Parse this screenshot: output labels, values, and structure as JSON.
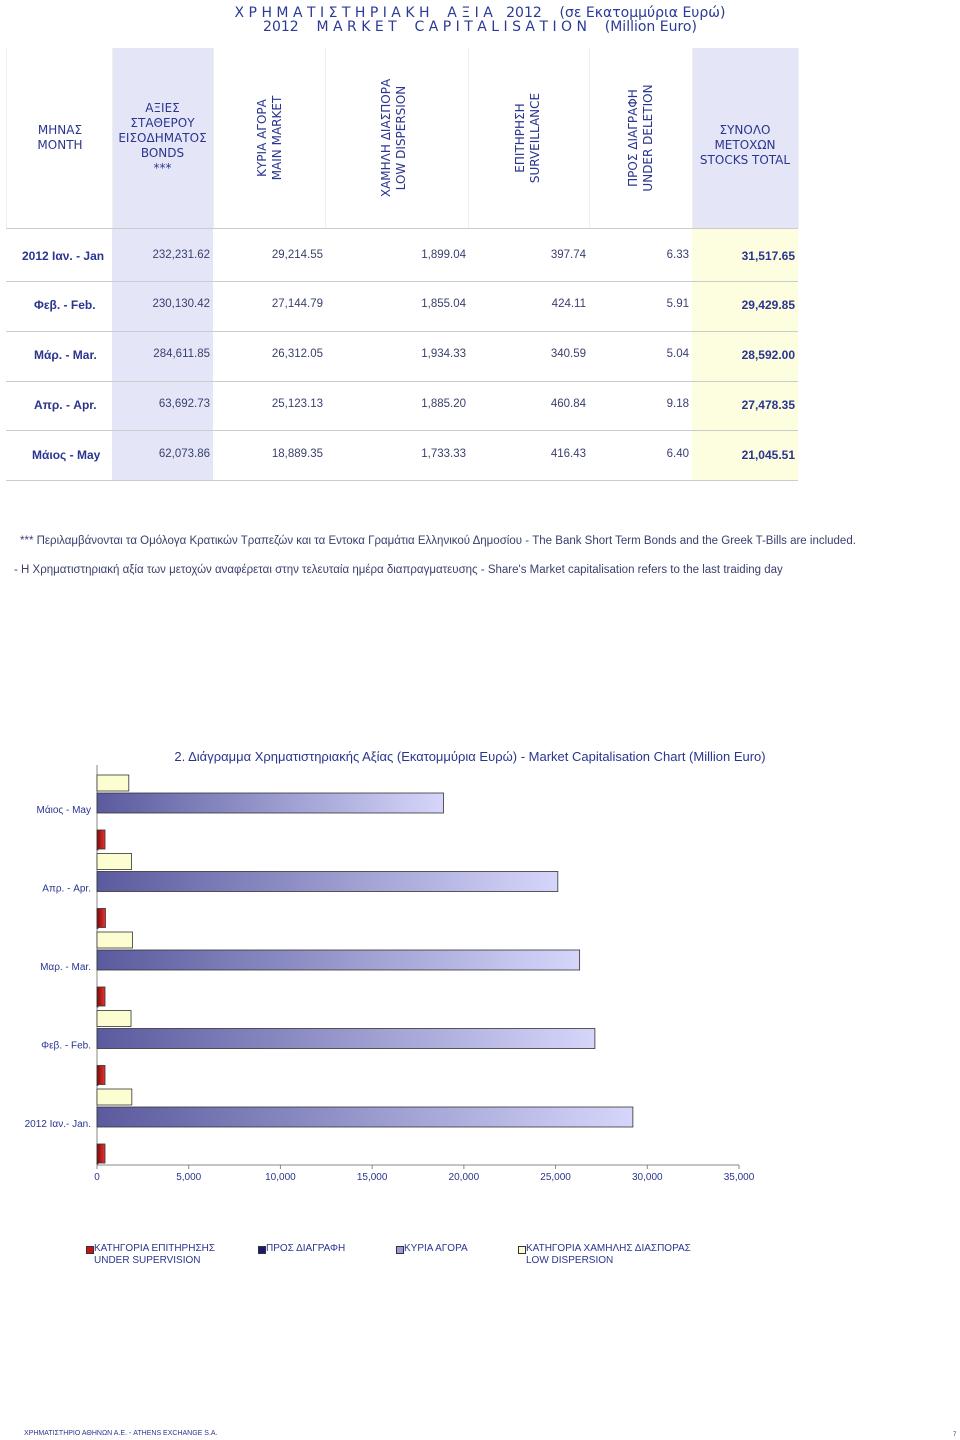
{
  "title": {
    "line1": "Χ Ρ Η Μ Α Τ Ι Σ Τ Η Ρ Ι Α Κ Η    Α Ξ Ι Α   2012    (σε Εκατομμύρια Ευρώ)",
    "line2": "2012    M A R K E T    C A P I T A L I S A T I O N    (Million Euro)"
  },
  "table": {
    "headers": {
      "month": [
        "ΜΗΝΑΣ",
        "MONTH"
      ],
      "bonds": [
        "ΑΞΙΕΣ",
        "ΣΤΑΘΕΡΟΥ",
        "ΕΙΣΟΔΗΜΑΤΟΣ",
        "BONDS",
        "***"
      ],
      "main_market": [
        "ΚΥΡΙΑ ΑΓΟΡΑ",
        "MAIN MARKET"
      ],
      "low_dispersion": [
        "ΧΑΜΗΛΗ ΔΙΑΣΠΟΡΑ",
        "LOW DISPERSION"
      ],
      "surveillance": [
        "ΕΠΙΤΗΡΗΣΗ",
        "SURVEILLANCE"
      ],
      "under_deletion": [
        "ΠΡΟΣ ΔΙΑΓΡΑΦΗ",
        "UNDER DELETION"
      ],
      "total": [
        "ΣΥΝΟΛΟ ΜΕΤΟΧΩΝ",
        "STOCKS TOTAL"
      ]
    },
    "rows": [
      {
        "month": "2012   Ιαν. - Jan",
        "bonds": "232,231.62",
        "main": "29,214.55",
        "low": "1,899.04",
        "surv": "397.74",
        "del": "6.33",
        "total": "31,517.65"
      },
      {
        "month": "Φεβ. - Feb.",
        "bonds": "230,130.42",
        "main": "27,144.79",
        "low": "1,855.04",
        "surv": "424.11",
        "del": "5.91",
        "total": "29,429.85"
      },
      {
        "month": "Μάρ. - Mar.",
        "bonds": "284,611.85",
        "main": "26,312.05",
        "low": "1,934.33",
        "surv": "340.59",
        "del": "5.04",
        "total": "28,592.00"
      },
      {
        "month": "Απρ. - Apr.",
        "bonds": "63,692.73",
        "main": "25,123.13",
        "low": "1,885.20",
        "surv": "460.84",
        "del": "9.18",
        "total": "27,478.35"
      },
      {
        "month": "Μάιος - May",
        "bonds": "62,073.86",
        "main": "18,889.35",
        "low": "1,733.33",
        "surv": "416.43",
        "del": "6.40",
        "total": "21,045.51"
      }
    ]
  },
  "notes": {
    "note1": "*** Περιλαμβάνονται τα Ομόλογα Κρατικών Τραπεζών και τα Εντοκα Γραμάτια Ελληνικού Δημοσίου - The Bank Short Term Bonds and the Greek T-Bills are included.",
    "note2": "- Η Χρηματιστηριακή αξία των μετοχών αναφέρεται στην τελευταία ημέρα διαπραγματευσης - Share's Market capitalisation refers to the last traiding day"
  },
  "chart_data": {
    "type": "bar",
    "orientation": "horizontal",
    "title": "2. Διάγραμμα Χρηματιστηριακής Αξίας (Εκατομμύρια Ευρώ) - Market Capitalisation Chart (Million Euro)",
    "categories": [
      "Μάιος - May",
      "Απρ. - Apr.",
      "Μαρ. - Mar.",
      "Φεβ. - Feb.",
      "2012  Ιαν.- Jan."
    ],
    "series": [
      {
        "name": "ΚΑΤΗΓΟΡΙΑ ΧΑΜΗΛΗΣ ΔΙΑΣΠΟΡΑΣ LOW DISPERSION",
        "key": "low",
        "color": "#fdfdd2",
        "values": [
          1733.33,
          1885.2,
          1934.33,
          1855.04,
          1899.04
        ]
      },
      {
        "name": "ΚΥΡΙΑ ΑΓΟΡΑ",
        "key": "main",
        "color": "#b8b8ea",
        "values": [
          18889.35,
          25123.13,
          26312.05,
          27144.79,
          29214.55
        ]
      },
      {
        "name": "ΠΡΟΣ ΔΙΑΓΡΑΦΗ",
        "key": "del",
        "color": "#1a1a6e",
        "values": [
          6.4,
          9.18,
          5.04,
          5.91,
          6.33
        ]
      },
      {
        "name": "ΚΑΤΗΓΟΡΙΑ ΕΠΙΤΗΡΗΣΗΣ UNDER SUPERVISION",
        "key": "surv",
        "color": "#cc1111",
        "values": [
          416.43,
          460.84,
          340.59,
          424.11,
          397.74
        ]
      }
    ],
    "xlim": [
      0,
      35000
    ],
    "xticks": [
      "0",
      "5,000",
      "10,000",
      "15,000",
      "20,000",
      "25,000",
      "30,000",
      "35,000"
    ],
    "xtick_values": [
      0,
      5000,
      10000,
      15000,
      20000,
      25000,
      30000,
      35000
    ],
    "legend": [
      {
        "label1": "ΚΑΤΗΓΟΡΙΑ ΕΠΙΤΗΡΗΣΗΣ",
        "label2": "UNDER SUPERVISION",
        "color": "#cc1111"
      },
      {
        "label1": "ΠΡΟΣ ΔΙΑΓΡΑΦΗ",
        "label2": "",
        "color": "#1a1a6e"
      },
      {
        "label1": "ΚΥΡΙΑ ΑΓΟΡΑ",
        "label2": "",
        "color": "#9a9ad8"
      },
      {
        "label1": "ΚΑΤΗΓΟΡΙΑ ΧΑΜΗΛΗΣ ΔΙΑΣΠΟΡΑΣ",
        "label2": "LOW DISPERSION",
        "color": "#fdfdd2"
      }
    ]
  },
  "footer": {
    "company": "ΧΡΗΜΑΤΙΣΤΗΡΙΟ ΑΘΗΝΩΝ Α.Ε. - ATHENS EXCHANGE S.A.",
    "page": "7"
  }
}
